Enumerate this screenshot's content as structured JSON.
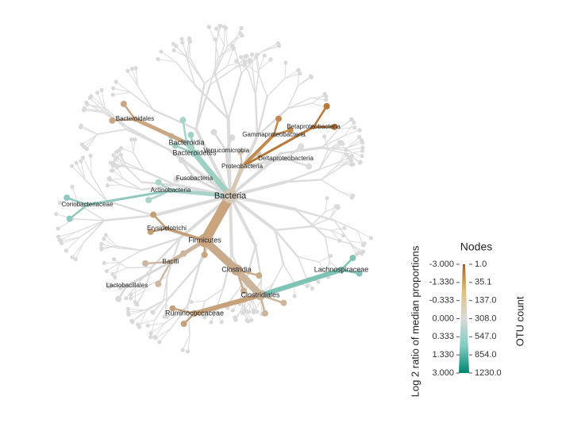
{
  "tree": {
    "nodes": [
      {
        "label": "Bacteria",
        "color": "#d2c7b8"
      },
      {
        "label": "Firmicutes",
        "color": "#c9a47d"
      },
      {
        "label": "Clostridia",
        "color": "#c9ab8b"
      },
      {
        "label": "Clostridiales",
        "color": "#cdb59c"
      },
      {
        "label": "Lachnospiraceae",
        "color": "#7fc3b5"
      },
      {
        "label": "Ruminococcaceae",
        "color": "#c6a27c"
      },
      {
        "label": "Bacilli",
        "color": "#cdb69f"
      },
      {
        "label": "Erysipelotrichi",
        "color": "#c4a07a"
      },
      {
        "label": "Bacteroidetes",
        "color": "#9fd0c6"
      },
      {
        "label": "Bacteroidia",
        "color": "#a8d3c8"
      },
      {
        "label": "Bacteroidales",
        "color": "#c9a783"
      },
      {
        "label": "Proteobacteria",
        "color": "#d6c8b4"
      },
      {
        "label": "Gammaproteobacteria",
        "color": "#c08a50"
      },
      {
        "label": "Betaproteobacteria",
        "color": "#b8783a"
      },
      {
        "label": "Actinobacteria",
        "color": "#a9d2c8"
      },
      {
        "label": "Coriobacteriaceae",
        "color": "#8fc9bd"
      },
      {
        "label": "Verrucomicrobia",
        "color": "#d9d9d9"
      },
      {
        "label": "Fusobacteria",
        "color": "#d9d9d9"
      },
      {
        "label": "Deltaproteobacteria",
        "color": "#dcdcdc"
      },
      {
        "label": "Lactobacillales",
        "color": "#d9d9d9"
      }
    ]
  },
  "legend": {
    "title": "Nodes",
    "left_label": "Log 2 ratio of median proportions",
    "right_label": "OTU count",
    "colors": [
      "#a6611a",
      "#dfc27d",
      "#d9d9d9",
      "#80cdc1",
      "#018571"
    ],
    "left_ticks": [
      {
        "value": -3,
        "label": "-3.000"
      },
      {
        "value": -1.33,
        "label": "-1.330"
      },
      {
        "value": -0.333,
        "label": "-0.333"
      },
      {
        "value": 0,
        "label": "0.000"
      },
      {
        "value": 0.333,
        "label": "0.333"
      },
      {
        "value": 1.33,
        "label": "1.330"
      },
      {
        "value": 3,
        "label": "3.000"
      }
    ],
    "right_ticks": [
      {
        "value": 1,
        "label": "1.0"
      },
      {
        "value": 35.1,
        "label": "35.1"
      },
      {
        "value": 137,
        "label": "137.0"
      },
      {
        "value": 308,
        "label": "308.0"
      },
      {
        "value": 547,
        "label": "547.0"
      },
      {
        "value": 854,
        "label": "854.0"
      },
      {
        "value": 1230,
        "label": "1230.0"
      }
    ]
  }
}
